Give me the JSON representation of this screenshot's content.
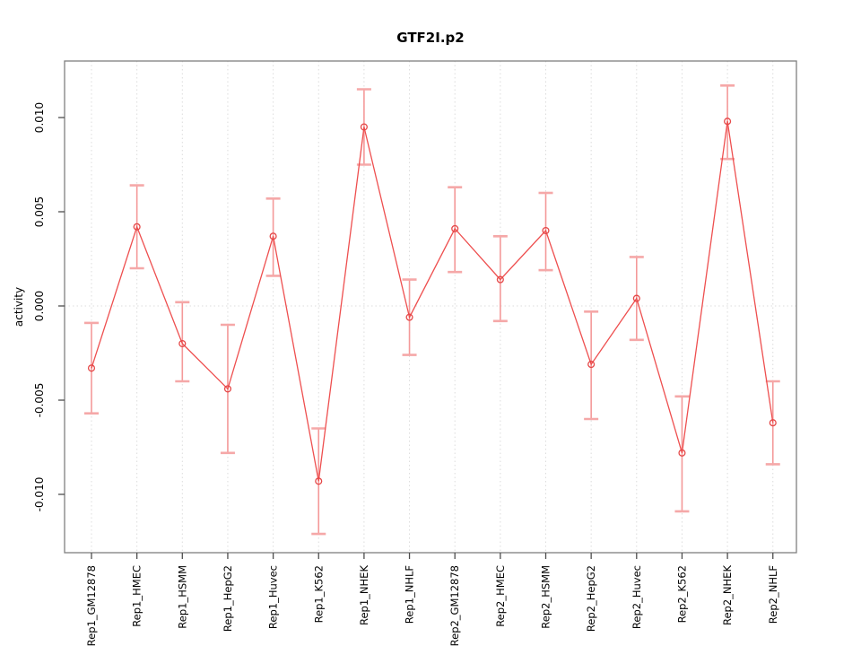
{
  "figure": {
    "background": "#ffffff"
  },
  "chart_data": {
    "type": "line",
    "title": "GTF2I.p2",
    "xlabel": "",
    "ylabel": "activity",
    "legend": null,
    "grid": "vertical dotted gridline at each category; dotted horizontal line at y=0",
    "categories": [
      "Rep1_GM12878",
      "Rep1_HMEC",
      "Rep1_HSMM",
      "Rep1_HepG2",
      "Rep1_Huvec",
      "Rep1_K562",
      "Rep1_NHEK",
      "Rep1_NHLF",
      "Rep2_GM12878",
      "Rep2_HMEC",
      "Rep2_HSMM",
      "Rep2_HepG2",
      "Rep2_Huvec",
      "Rep2_K562",
      "Rep2_NHEK",
      "Rep2_NHLF"
    ],
    "series": [
      {
        "name": "activity",
        "values": [
          -0.0033,
          0.0042,
          -0.002,
          -0.0044,
          0.0037,
          -0.0093,
          0.0095,
          -0.0006,
          0.0041,
          0.0014,
          0.004,
          -0.0031,
          0.0004,
          -0.0078,
          0.0098,
          -0.0062
        ]
      }
    ],
    "error_upper": [
      -0.0009,
      0.0064,
      0.0002,
      -0.001,
      0.0057,
      -0.0065,
      0.0115,
      0.0014,
      0.0063,
      0.0037,
      0.006,
      -0.0003,
      0.0026,
      -0.0048,
      0.0117,
      -0.004
    ],
    "error_lower": [
      -0.0057,
      0.002,
      -0.004,
      -0.0078,
      0.0016,
      -0.0121,
      0.0075,
      -0.0026,
      0.0018,
      -0.0008,
      0.0019,
      -0.006,
      -0.0018,
      -0.0109,
      0.0078,
      -0.0084
    ],
    "yticks": [
      -0.01,
      -0.005,
      0.0,
      0.005,
      0.01
    ],
    "ytick_labels": [
      "-0.010",
      "-0.005",
      "0.000",
      "0.005",
      "0.010"
    ],
    "ylim": [
      -0.0131,
      0.013
    ],
    "colors": {
      "series_line": "#ee4f4f",
      "point_stroke": "#e54848",
      "error_bar_line": "#f49999",
      "error_bar_cap": "#f5a8a8",
      "gridline": "#dcdcdc",
      "zero_line": "#dcdcdc",
      "axis_box": "#7f7f7f",
      "tick_mark": "#4d4d4d",
      "text": "#000000"
    }
  }
}
